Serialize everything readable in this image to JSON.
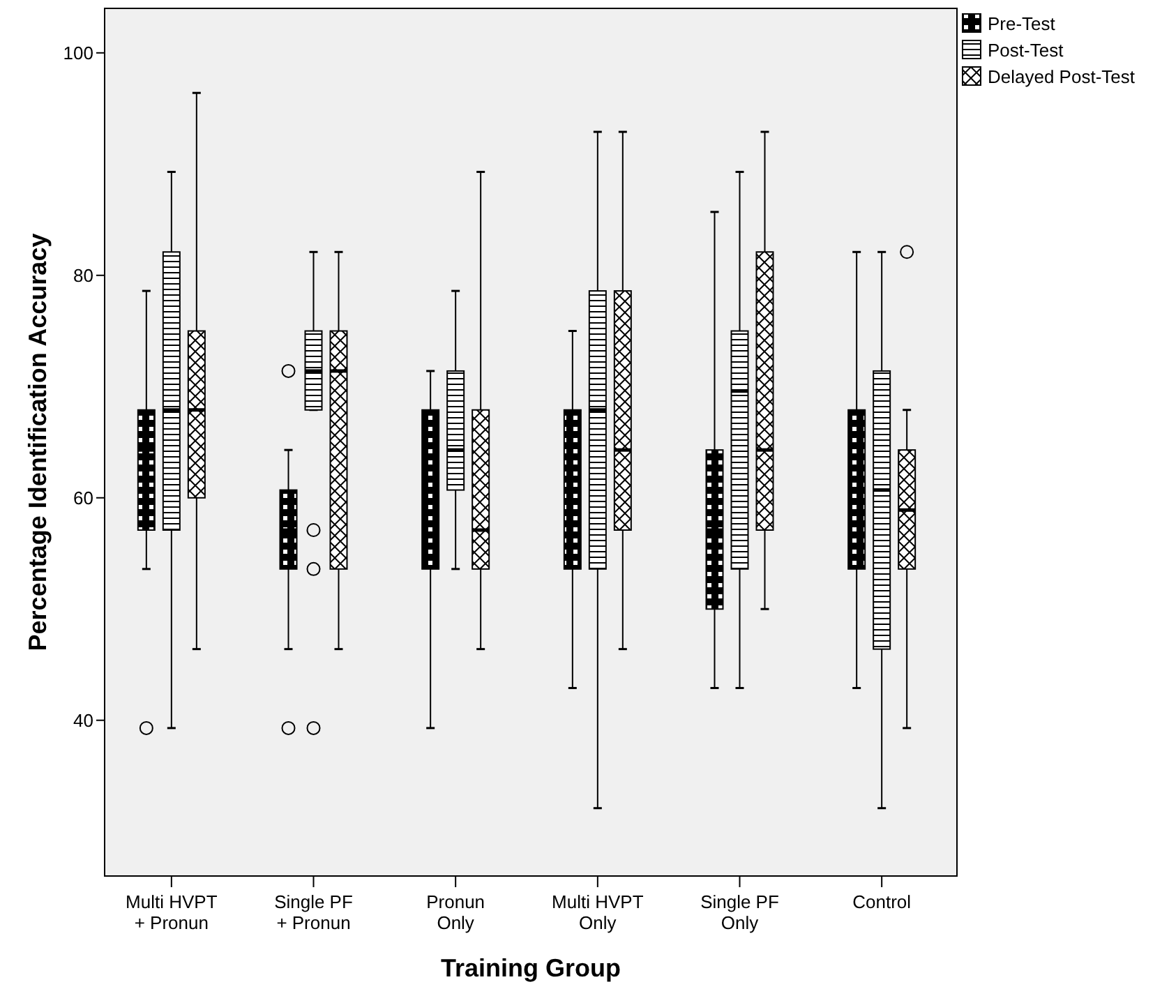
{
  "chart_data": {
    "type": "box",
    "xlabel": "Training Group",
    "ylabel": "Percentage Identification Accuracy",
    "categories": [
      "Multi HVPT\n+ Pronun",
      "Single PF\n+ Pronun",
      "Pronun\nOnly",
      "Multi HVPT\nOnly",
      "Single PF\nOnly",
      "Control"
    ],
    "ylim": [
      26,
      104
    ],
    "yticks": [
      40,
      60,
      80,
      100
    ],
    "grid": false,
    "legend": "top right",
    "series": [
      {
        "name": "Pre-Test",
        "color": "#000000",
        "boxes": [
          {
            "low": 53.6,
            "q1": 57.1,
            "median": 64.3,
            "q3": 67.9,
            "high": 78.6,
            "outliers": [
              39.3
            ]
          },
          {
            "low": 46.4,
            "q1": 53.6,
            "median": 57.1,
            "q3": 60.7,
            "high": 64.3,
            "outliers": [
              71.4,
              39.3
            ]
          },
          {
            "low": 39.3,
            "q1": 53.6,
            "median": 60.7,
            "q3": 67.9,
            "high": 71.4
          },
          {
            "low": 42.9,
            "q1": 53.6,
            "median": 60.7,
            "q3": 67.9,
            "high": 75
          },
          {
            "low": 42.9,
            "q1": 50,
            "median": 57.1,
            "q3": 64.3,
            "high": 85.7
          },
          {
            "low": 42.9,
            "q1": 53.6,
            "median": 60.7,
            "q3": 67.9,
            "high": 82.1
          }
        ]
      },
      {
        "name": "Post-Test",
        "color": "#000000",
        "boxes": [
          {
            "low": 39.3,
            "q1": 57.1,
            "median": 67.9,
            "q3": 82.1,
            "high": 89.3
          },
          {
            "low": 67.9,
            "q1": 67.9,
            "median": 71.4,
            "q3": 75,
            "high": 82.1,
            "outliers": [
              57.1,
              53.6,
              39.3
            ]
          },
          {
            "low": 53.6,
            "q1": 60.7,
            "median": 64.3,
            "q3": 71.4,
            "high": 78.6
          },
          {
            "low": 32.1,
            "q1": 53.6,
            "median": 67.9,
            "q3": 78.6,
            "high": 92.9
          },
          {
            "low": 42.9,
            "q1": 53.6,
            "median": 69.6,
            "q3": 75,
            "high": 89.3
          },
          {
            "low": 32.1,
            "q1": 46.4,
            "median": 60.7,
            "q3": 71.4,
            "high": 82.1
          }
        ]
      },
      {
        "name": "Delayed Post-Test",
        "color": "#000000",
        "boxes": [
          {
            "low": 46.4,
            "q1": 60,
            "median": 67.9,
            "q3": 75,
            "high": 96.4
          },
          {
            "low": 46.4,
            "q1": 53.6,
            "median": 71.4,
            "q3": 75,
            "high": 82.1
          },
          {
            "low": 46.4,
            "q1": 53.6,
            "median": 57.1,
            "q3": 67.9,
            "high": 89.3
          },
          {
            "low": 46.4,
            "q1": 57.1,
            "median": 64.3,
            "q3": 78.6,
            "high": 92.9
          },
          {
            "low": 50,
            "q1": 57.1,
            "median": 64.3,
            "q3": 82.1,
            "high": 92.9
          },
          {
            "low": 39.3,
            "q1": 53.6,
            "median": 58.9,
            "q3": 64.3,
            "high": 67.9,
            "outliers": [
              82.1
            ]
          }
        ]
      }
    ]
  }
}
